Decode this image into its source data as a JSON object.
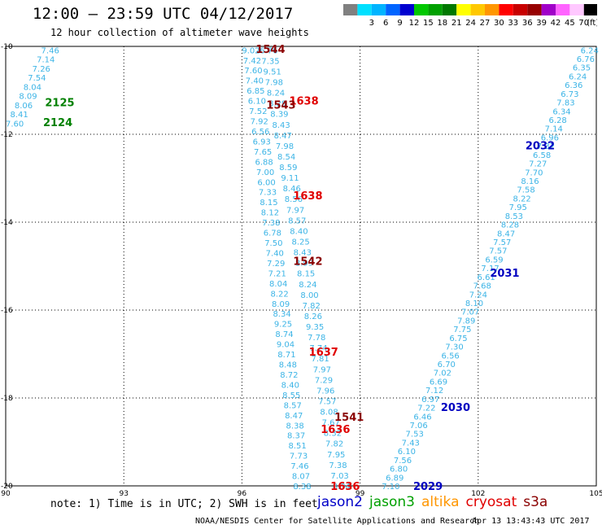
{
  "header": {
    "title": "12:00 — 23:59 UTC 04/12/2017",
    "subtitle": "12 hour collection of altimeter wave heights"
  },
  "color_scale": {
    "unit": "(ft)",
    "swatches": [
      {
        "color": "#808080",
        "label": ""
      },
      {
        "color": "#00e0ff",
        "label": "3"
      },
      {
        "color": "#00b4ff",
        "label": "6"
      },
      {
        "color": "#0064ff",
        "label": "9"
      },
      {
        "color": "#0000d0",
        "label": "12"
      },
      {
        "color": "#00c800",
        "label": "15"
      },
      {
        "color": "#00a000",
        "label": "18"
      },
      {
        "color": "#007800",
        "label": "21"
      },
      {
        "color": "#ffff00",
        "label": "24"
      },
      {
        "color": "#ffc800",
        "label": "27"
      },
      {
        "color": "#ff9600",
        "label": "30"
      },
      {
        "color": "#ff0000",
        "label": "33"
      },
      {
        "color": "#c80000",
        "label": "36"
      },
      {
        "color": "#960000",
        "label": "39"
      },
      {
        "color": "#a000c8",
        "label": "42"
      },
      {
        "color": "#ff64ff",
        "label": "45"
      },
      {
        "color": "#ffc8ff",
        "label": "70"
      },
      {
        "color": "#000000",
        "label": ""
      }
    ]
  },
  "map": {
    "lon_ticks": [
      "90",
      "93",
      "96",
      "99",
      "102",
      "105"
    ],
    "lat_ticks": [
      "-10",
      "-12",
      "-14",
      "-16",
      "-18",
      "-20"
    ],
    "lon_range": [
      90,
      105
    ],
    "lat_range": [
      -10,
      -20
    ],
    "time_labels": [
      {
        "text": "2125",
        "color": "#008000",
        "lon": 91.0,
        "lat": -11.27
      },
      {
        "text": "2124",
        "color": "#008000",
        "lon": 90.95,
        "lat": -11.72
      },
      {
        "text": "1544",
        "color": "#8b0000",
        "lon": 96.35,
        "lat": -10.06
      },
      {
        "text": "1638",
        "color": "#e00000",
        "lon": 97.2,
        "lat": -11.23
      },
      {
        "text": "1543",
        "color": "#8b0000",
        "lon": 96.62,
        "lat": -11.32
      },
      {
        "text": "1638",
        "color": "#e00000",
        "lon": 97.3,
        "lat": -13.39
      },
      {
        "text": "1542",
        "color": "#8b0000",
        "lon": 97.3,
        "lat": -14.88
      },
      {
        "text": "1637",
        "color": "#e00000",
        "lon": 97.7,
        "lat": -16.94
      },
      {
        "text": "1541",
        "color": "#8b0000",
        "lon": 98.35,
        "lat": -18.43
      },
      {
        "text": "1636",
        "color": "#e00000",
        "lon": 98.0,
        "lat": -18.7
      },
      {
        "text": "1636",
        "color": "#e00000",
        "lon": 98.25,
        "lat": -20.0
      },
      {
        "text": "2032",
        "color": "#0000c0",
        "lon": 103.2,
        "lat": -12.25
      },
      {
        "text": "2031",
        "color": "#0000c0",
        "lon": 102.3,
        "lat": -15.15
      },
      {
        "text": "2030",
        "color": "#0000c0",
        "lon": 101.05,
        "lat": -18.2
      },
      {
        "text": "2029",
        "color": "#0000c0",
        "lon": 100.35,
        "lat": -20.0
      }
    ],
    "tracks": [
      {
        "name": "track-2125",
        "color": "#3cb4e6",
        "lon_start": 90.9,
        "lat_start": -10.08,
        "lon_end": 90.0,
        "lat_end": -11.75,
        "values": [
          "7.46",
          "7.14",
          "7.26",
          "7.54",
          "8.04",
          "8.09",
          "8.06",
          "8.41",
          "7.60"
        ]
      },
      {
        "name": "track-1544-left",
        "color": "#3cb4e6",
        "lon_start": 96.0,
        "lat_start": -10.08,
        "lon_end": 97.3,
        "lat_end": -20.0,
        "values": [
          "9.02",
          "7.42",
          "7.60",
          "7.40",
          "6.85",
          "6.10",
          "7.52",
          "7.92",
          "6.56",
          "6.93",
          "7.65",
          "6.88",
          "7.00",
          "6.00",
          "7.33",
          "8.15",
          "8.12",
          "7.38",
          "6.78",
          "7.50",
          "7.40",
          "7.29",
          "7.21",
          "8.04",
          "8.22",
          "8.09",
          "8.34",
          "9.25",
          "8.74",
          "9.04",
          "8.71",
          "8.48",
          "8.72",
          "8.40",
          "8.55",
          "8.57",
          "8.47",
          "8.38",
          "8.37",
          "8.51",
          "7.73",
          "7.46",
          "8.07",
          "8.38"
        ]
      },
      {
        "name": "track-1638",
        "color": "#3cb4e6",
        "lon_start": 96.45,
        "lat_start": -10.08,
        "lon_end": 98.3,
        "lat_end": -20.0,
        "values": [
          "6.76",
          "7.35",
          "9.51",
          "7.98",
          "8.24",
          "8.29",
          "8.39",
          "8.43",
          "8.47",
          "7.98",
          "8.54",
          "8.59",
          "9.11",
          "8.46",
          "8.56",
          "7.97",
          "8.57",
          "8.40",
          "8.25",
          "8.43",
          "8.99",
          "8.15",
          "8.24",
          "8.00",
          "7.82",
          "8.26",
          "9.35",
          "7.78",
          "7.74",
          "7.81",
          "7.97",
          "7.29",
          "7.96",
          "7.57",
          "8.08",
          "7.67",
          "8.32",
          "7.82",
          "7.95",
          "7.38",
          "7.03",
          "8.34"
        ]
      },
      {
        "name": "track-2032",
        "color": "#3cb4e6",
        "lon_start": 104.6,
        "lat_start": -10.08,
        "lon_end": 99.55,
        "lat_end": -20.0,
        "values": [
          "6.24",
          "6.76",
          "6.35",
          "6.24",
          "6.36",
          "6.73",
          "7.83",
          "6.34",
          "6.28",
          "7.14",
          "6.96",
          "7.32",
          "6.58",
          "7.27",
          "7.70",
          "8.16",
          "7.58",
          "8.22",
          "7.95",
          "8.53",
          "8.28",
          "8.47",
          "7.57",
          "7.57",
          "6.59",
          "7.17",
          "6.61",
          "7.68",
          "7.24",
          "8.10",
          "7.07",
          "7.89",
          "7.75",
          "6.75",
          "7.30",
          "6.56",
          "6.70",
          "7.02",
          "6.69",
          "7.12",
          "6.97",
          "7.22",
          "6.46",
          "7.06",
          "7.53",
          "7.43",
          "6.10",
          "7.56",
          "6.80",
          "6.89",
          "7.10"
        ]
      }
    ]
  },
  "footer": {
    "note": "note: 1) Time is in UTC; 2) SWH is in feet",
    "satellites": [
      {
        "name": "jason2",
        "color": "#0000c8"
      },
      {
        "name": "jason3",
        "color": "#00a000"
      },
      {
        "name": "altika",
        "color": "#ff9600"
      },
      {
        "name": "cryosat",
        "color": "#e00000"
      },
      {
        "name": "s3a",
        "color": "#8b0000"
      }
    ],
    "credit": "NOAA/NESDIS Center for Satellite Applications and Research",
    "timestamp": "Apr 13 13:43:43 UTC 2017"
  }
}
